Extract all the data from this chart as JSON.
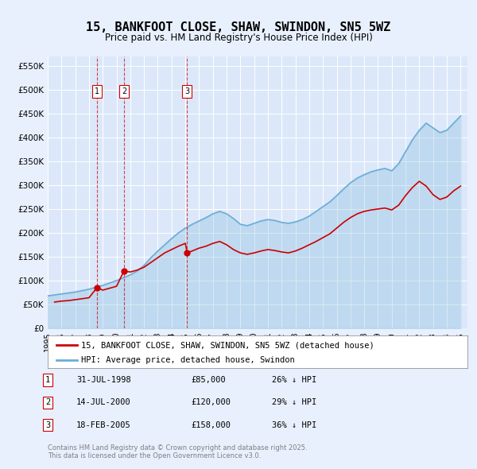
{
  "title": "15, BANKFOOT CLOSE, SHAW, SWINDON, SN5 5WZ",
  "subtitle": "Price paid vs. HM Land Registry's House Price Index (HPI)",
  "background_color": "#e8f0fe",
  "plot_bg_color": "#dce8fa",
  "legend_label_red": "15, BANKFOOT CLOSE, SHAW, SWINDON, SN5 5WZ (detached house)",
  "legend_label_blue": "HPI: Average price, detached house, Swindon",
  "footer": "Contains HM Land Registry data © Crown copyright and database right 2025.\nThis data is licensed under the Open Government Licence v3.0.",
  "transactions": [
    {
      "num": 1,
      "date": "31-JUL-1998",
      "price": 85000,
      "pct": "26%",
      "year": 1998.58
    },
    {
      "num": 2,
      "date": "14-JUL-2000",
      "price": 120000,
      "pct": "29%",
      "year": 2000.54
    },
    {
      "num": 3,
      "date": "18-FEB-2005",
      "price": 158000,
      "pct": "36%",
      "year": 2005.13
    }
  ],
  "hpi_years": [
    1995,
    1995.5,
    1996,
    1996.5,
    1997,
    1997.5,
    1998,
    1998.5,
    1999,
    1999.5,
    2000,
    2000.5,
    2001,
    2001.5,
    2002,
    2002.5,
    2003,
    2003.5,
    2004,
    2004.5,
    2005,
    2005.5,
    2006,
    2006.5,
    2007,
    2007.5,
    2008,
    2008.5,
    2009,
    2009.5,
    2010,
    2010.5,
    2011,
    2011.5,
    2012,
    2012.5,
    2013,
    2013.5,
    2014,
    2014.5,
    2015,
    2015.5,
    2016,
    2016.5,
    2017,
    2017.5,
    2018,
    2018.5,
    2019,
    2019.5,
    2020,
    2020.5,
    2021,
    2021.5,
    2022,
    2022.5,
    2023,
    2023.5,
    2024,
    2024.5,
    2025
  ],
  "hpi_values": [
    68000,
    70000,
    72000,
    74000,
    76000,
    79000,
    82000,
    86000,
    90000,
    95000,
    100000,
    106000,
    112000,
    120000,
    132000,
    148000,
    162000,
    175000,
    188000,
    200000,
    210000,
    218000,
    225000,
    232000,
    240000,
    245000,
    240000,
    230000,
    218000,
    215000,
    220000,
    225000,
    228000,
    226000,
    222000,
    220000,
    223000,
    228000,
    235000,
    245000,
    255000,
    265000,
    278000,
    292000,
    305000,
    315000,
    322000,
    328000,
    332000,
    335000,
    330000,
    345000,
    370000,
    395000,
    415000,
    430000,
    420000,
    410000,
    415000,
    430000,
    445000
  ],
  "red_years": [
    1995.5,
    1996,
    1996.5,
    1997,
    1997.5,
    1998,
    1998.58,
    1999,
    1999.5,
    2000,
    2000.54,
    2001,
    2001.5,
    2002,
    2002.5,
    2003,
    2003.5,
    2004,
    2004.5,
    2005,
    2005.13,
    2005.5,
    2006,
    2006.5,
    2007,
    2007.5,
    2008,
    2008.5,
    2009,
    2009.5,
    2010,
    2010.5,
    2011,
    2011.5,
    2012,
    2012.5,
    2013,
    2013.5,
    2014,
    2014.5,
    2015,
    2015.5,
    2016,
    2016.5,
    2017,
    2017.5,
    2018,
    2018.5,
    2019,
    2019.5,
    2020,
    2020.5,
    2021,
    2021.5,
    2022,
    2022.5,
    2023,
    2023.5,
    2024,
    2024.5,
    2025
  ],
  "red_values": [
    55000,
    57000,
    58000,
    60000,
    62000,
    64000,
    85000,
    80000,
    84000,
    88000,
    120000,
    118000,
    122000,
    128000,
    138000,
    148000,
    158000,
    165000,
    172000,
    178000,
    158000,
    162000,
    168000,
    172000,
    178000,
    182000,
    175000,
    165000,
    158000,
    155000,
    158000,
    162000,
    165000,
    163000,
    160000,
    158000,
    162000,
    168000,
    175000,
    182000,
    190000,
    198000,
    210000,
    222000,
    232000,
    240000,
    245000,
    248000,
    250000,
    252000,
    248000,
    258000,
    278000,
    295000,
    308000,
    298000,
    280000,
    270000,
    275000,
    288000,
    298000
  ],
  "ylim": [
    0,
    570000
  ],
  "xlim": [
    1995,
    2025.5
  ],
  "yticks": [
    0,
    50000,
    100000,
    150000,
    200000,
    250000,
    300000,
    350000,
    400000,
    450000,
    500000,
    550000
  ],
  "ytick_labels": [
    "£0",
    "£50K",
    "£100K",
    "£150K",
    "£200K",
    "£250K",
    "£300K",
    "£350K",
    "£400K",
    "£450K",
    "£500K",
    "£550K"
  ],
  "xticks": [
    1995,
    1996,
    1997,
    1998,
    1999,
    2000,
    2001,
    2002,
    2003,
    2004,
    2005,
    2006,
    2007,
    2008,
    2009,
    2010,
    2011,
    2012,
    2013,
    2014,
    2015,
    2016,
    2017,
    2018,
    2019,
    2020,
    2021,
    2022,
    2023,
    2024,
    2025
  ]
}
